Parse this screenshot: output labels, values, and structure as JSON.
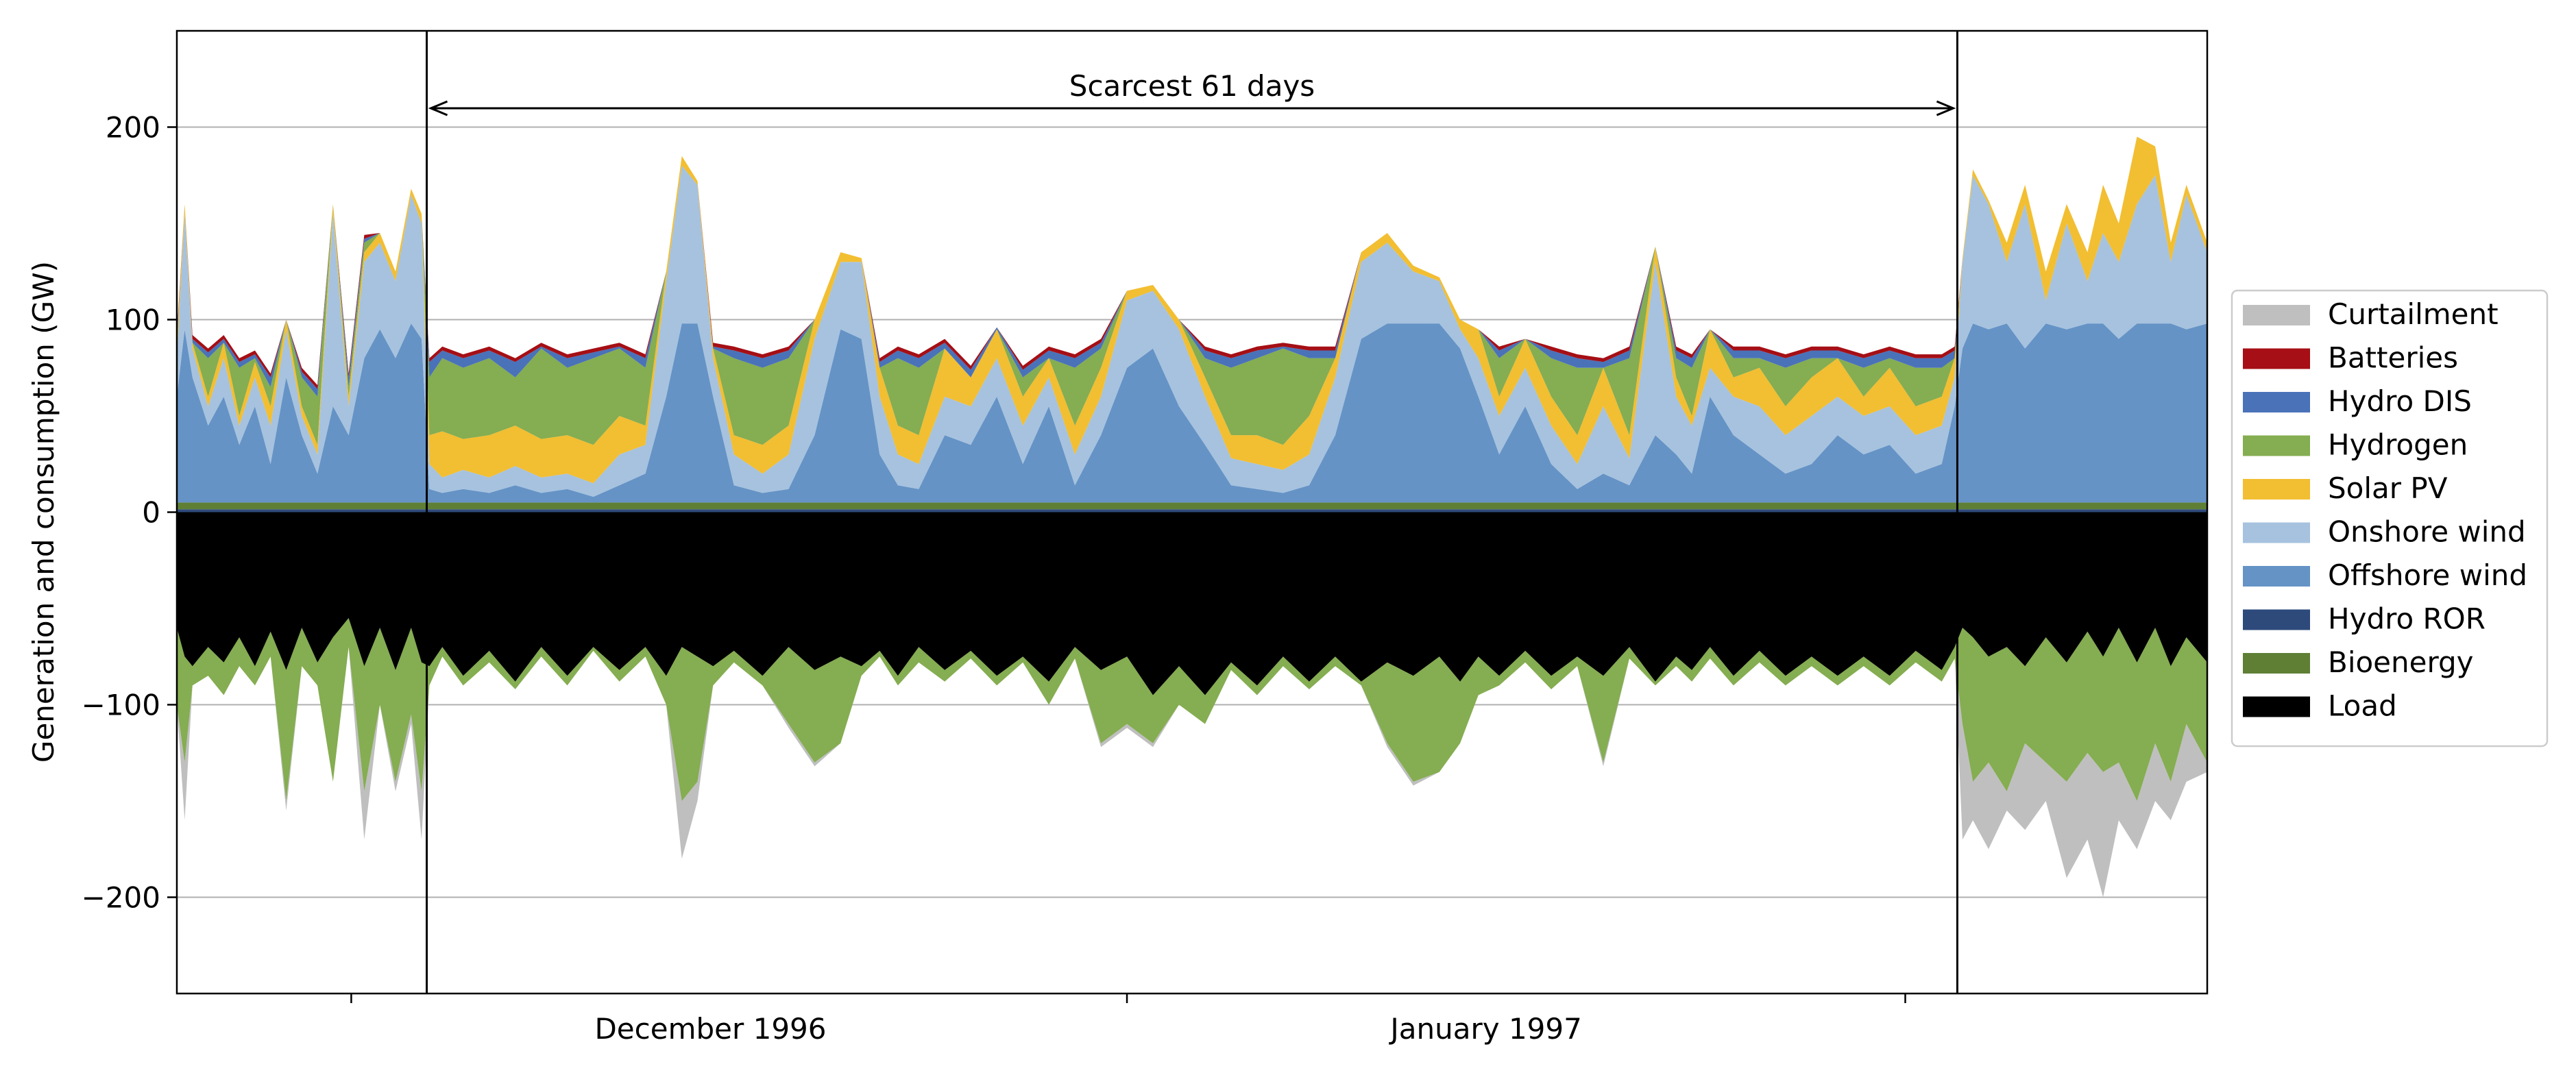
{
  "chart_data": {
    "type": "area",
    "title": "",
    "xlabel": "",
    "ylabel": "Generation and consumption (GW)",
    "ylim": [
      -250,
      250
    ],
    "yticks": [
      -200,
      -100,
      0,
      100,
      200
    ],
    "ytick_labels": [
      "−200",
      "−100",
      "0",
      "100",
      "200"
    ],
    "grid": "horizontal",
    "xlim_days": [
      0,
      78
    ],
    "x_date_labels": [
      {
        "day": 20.5,
        "label": "December 1996"
      },
      {
        "day": 50.3,
        "label": "January 1997"
      }
    ],
    "x_minor_ticks_days": [
      6.7,
      36.5,
      66.4
    ],
    "window": {
      "start_day": 9.6,
      "end_day": 68.4,
      "label": "Scarcest 61 days"
    },
    "legend_position": "outside-right",
    "series": [
      {
        "name": "Curtailment",
        "color": "#bfbfbf"
      },
      {
        "name": "Batteries",
        "color": "#a50f15"
      },
      {
        "name": "Hydro DIS",
        "color": "#4a72b8"
      },
      {
        "name": "Hydrogen",
        "color": "#85ad51"
      },
      {
        "name": "Solar PV",
        "color": "#f2be32"
      },
      {
        "name": "Onshore wind",
        "color": "#a6c2de"
      },
      {
        "name": "Offshore wind",
        "color": "#6593c6"
      },
      {
        "name": "Hydro ROR",
        "color": "#2e4a7b"
      },
      {
        "name": "Bioenergy",
        "color": "#5f7f35"
      },
      {
        "name": "Load",
        "color": "#000000"
      }
    ],
    "generation_profile": {
      "x_days": [
        0,
        0.3,
        0.6,
        1.2,
        1.8,
        2.4,
        3.0,
        3.6,
        4.2,
        4.8,
        5.4,
        6.0,
        6.6,
        7.2,
        7.8,
        8.4,
        9.0,
        9.4,
        9.7,
        10.2,
        11.0,
        12.0,
        13.0,
        14.0,
        15.0,
        16.0,
        17.0,
        18.0,
        18.8,
        19.4,
        20.0,
        20.6,
        21.4,
        22.5,
        23.5,
        24.5,
        25.5,
        26.3,
        27.0,
        27.7,
        28.5,
        29.5,
        30.5,
        31.5,
        32.5,
        33.5,
        34.5,
        35.5,
        36.5,
        37.5,
        38.5,
        39.5,
        40.5,
        41.5,
        42.5,
        43.5,
        44.5,
        45.5,
        46.5,
        47.5,
        48.5,
        49.3,
        50.0,
        50.8,
        51.8,
        52.8,
        53.8,
        54.8,
        55.8,
        56.8,
        57.6,
        58.2,
        58.9,
        59.8,
        60.8,
        61.8,
        62.8,
        63.8,
        64.8,
        65.8,
        66.8,
        67.8,
        68.3,
        68.6,
        69.0,
        69.6,
        70.3,
        71.0,
        71.8,
        72.6,
        73.4,
        74.0,
        74.6,
        75.3,
        76.0,
        76.6,
        77.2,
        78.0
      ],
      "bioenergy_ror": [
        5,
        5,
        5,
        5,
        5,
        5,
        5,
        5,
        5,
        5,
        5,
        5,
        5,
        5,
        5,
        5,
        5,
        5,
        5,
        5,
        5,
        5,
        5,
        5,
        5,
        5,
        5,
        5,
        5,
        5,
        5,
        5,
        5,
        5,
        5,
        5,
        5,
        5,
        5,
        5,
        5,
        5,
        5,
        5,
        5,
        5,
        5,
        5,
        5,
        5,
        5,
        5,
        5,
        5,
        5,
        5,
        5,
        5,
        5,
        5,
        5,
        5,
        5,
        5,
        5,
        5,
        5,
        5,
        5,
        5,
        5,
        5,
        5,
        5,
        5,
        5,
        5,
        5,
        5,
        5,
        5,
        5,
        5,
        5,
        5,
        5,
        5,
        5,
        5,
        5,
        5,
        5,
        5,
        5,
        5,
        5,
        5,
        5
      ],
      "offshore": [
        60,
        95,
        70,
        45,
        60,
        35,
        55,
        25,
        70,
        40,
        20,
        55,
        40,
        80,
        95,
        80,
        98,
        90,
        12,
        10,
        12,
        10,
        14,
        10,
        12,
        8,
        14,
        20,
        60,
        98,
        98,
        60,
        14,
        10,
        12,
        40,
        95,
        90,
        30,
        14,
        12,
        40,
        35,
        60,
        25,
        55,
        14,
        40,
        75,
        85,
        55,
        35,
        14,
        12,
        10,
        14,
        40,
        90,
        98,
        98,
        98,
        85,
        60,
        30,
        55,
        25,
        12,
        20,
        14,
        40,
        30,
        20,
        60,
        40,
        30,
        20,
        25,
        40,
        30,
        35,
        20,
        25,
        55,
        85,
        98,
        95,
        98,
        85,
        98,
        95,
        98,
        98,
        90,
        98,
        98,
        98,
        95,
        98
      ],
      "onshore": [
        80,
        155,
        85,
        55,
        80,
        45,
        70,
        45,
        95,
        50,
        30,
        155,
        55,
        130,
        140,
        120,
        165,
        150,
        25,
        18,
        22,
        18,
        24,
        18,
        20,
        15,
        30,
        35,
        120,
        180,
        170,
        80,
        30,
        20,
        30,
        90,
        130,
        130,
        60,
        30,
        25,
        60,
        55,
        80,
        45,
        70,
        30,
        60,
        110,
        115,
        95,
        60,
        28,
        25,
        22,
        30,
        70,
        130,
        140,
        125,
        120,
        95,
        80,
        50,
        75,
        45,
        25,
        55,
        28,
        130,
        60,
        45,
        75,
        60,
        55,
        40,
        50,
        60,
        50,
        55,
        40,
        45,
        70,
        130,
        175,
        160,
        130,
        160,
        110,
        150,
        120,
        145,
        130,
        160,
        175,
        130,
        165,
        135
      ],
      "solar": [
        88,
        160,
        88,
        60,
        88,
        50,
        78,
        55,
        100,
        55,
        35,
        160,
        60,
        135,
        145,
        125,
        168,
        155,
        40,
        42,
        38,
        40,
        45,
        38,
        40,
        35,
        50,
        45,
        125,
        185,
        172,
        85,
        40,
        35,
        45,
        100,
        135,
        132,
        75,
        45,
        40,
        85,
        70,
        95,
        60,
        80,
        45,
        75,
        115,
        118,
        100,
        70,
        40,
        40,
        35,
        50,
        80,
        135,
        145,
        128,
        122,
        100,
        95,
        60,
        90,
        60,
        40,
        75,
        40,
        138,
        70,
        50,
        95,
        70,
        75,
        55,
        70,
        80,
        60,
        75,
        55,
        60,
        80,
        132,
        178,
        162,
        140,
        170,
        125,
        160,
        135,
        170,
        150,
        195,
        190,
        140,
        170,
        140
      ],
      "hydrogen": [
        88,
        160,
        88,
        80,
        88,
        75,
        80,
        65,
        100,
        70,
        60,
        160,
        65,
        140,
        145,
        125,
        168,
        155,
        70,
        80,
        75,
        80,
        70,
        85,
        75,
        80,
        85,
        75,
        125,
        185,
        172,
        85,
        80,
        75,
        80,
        100,
        135,
        132,
        75,
        80,
        75,
        85,
        70,
        95,
        70,
        80,
        75,
        85,
        115,
        118,
        100,
        80,
        75,
        80,
        85,
        80,
        80,
        135,
        145,
        128,
        122,
        100,
        95,
        80,
        90,
        80,
        75,
        75,
        80,
        138,
        80,
        75,
        95,
        80,
        80,
        75,
        80,
        80,
        75,
        80,
        75,
        75,
        80,
        132,
        178,
        162,
        140,
        170,
        125,
        160,
        135,
        170,
        150,
        195,
        190,
        140,
        170,
        140
      ],
      "hydro_dis": [
        90,
        160,
        90,
        83,
        90,
        78,
        82,
        70,
        100,
        73,
        64,
        160,
        70,
        142,
        145,
        125,
        168,
        155,
        78,
        84,
        80,
        84,
        78,
        86,
        80,
        83,
        86,
        80,
        125,
        185,
        172,
        86,
        84,
        80,
        84,
        100,
        135,
        132,
        78,
        84,
        80,
        88,
        74,
        96,
        74,
        84,
        80,
        88,
        115,
        118,
        100,
        84,
        80,
        84,
        86,
        84,
        84,
        135,
        145,
        128,
        122,
        100,
        95,
        84,
        90,
        84,
        80,
        78,
        84,
        138,
        84,
        80,
        95,
        84,
        84,
        80,
        84,
        84,
        80,
        84,
        80,
        80,
        84,
        132,
        178,
        162,
        140,
        170,
        125,
        160,
        135,
        170,
        150,
        195,
        190,
        140,
        170,
        140
      ],
      "batteries": [
        92,
        160,
        92,
        85,
        92,
        80,
        84,
        72,
        100,
        75,
        66,
        160,
        72,
        144,
        145,
        125,
        168,
        155,
        80,
        86,
        82,
        86,
        80,
        88,
        82,
        85,
        88,
        82,
        125,
        185,
        172,
        88,
        86,
        82,
        86,
        100,
        135,
        132,
        80,
        86,
        82,
        90,
        76,
        96,
        76,
        86,
        82,
        90,
        115,
        118,
        100,
        86,
        82,
        86,
        88,
        86,
        86,
        135,
        145,
        128,
        122,
        100,
        95,
        86,
        90,
        86,
        82,
        80,
        86,
        138,
        86,
        82,
        95,
        86,
        86,
        82,
        86,
        86,
        82,
        86,
        82,
        82,
        86,
        132,
        178,
        162,
        140,
        170,
        125,
        160,
        135,
        170,
        150,
        195,
        190,
        140,
        170,
        140
      ]
    },
    "consumption_profile": {
      "x_days": [
        0,
        0.3,
        0.6,
        1.2,
        1.8,
        2.4,
        3.0,
        3.6,
        4.2,
        4.8,
        5.4,
        6.0,
        6.6,
        7.2,
        7.8,
        8.4,
        9.0,
        9.4,
        9.7,
        10.2,
        11.0,
        12.0,
        13.0,
        14.0,
        15.0,
        16.0,
        17.0,
        18.0,
        18.8,
        19.4,
        20.0,
        20.6,
        21.4,
        22.5,
        23.5,
        24.5,
        25.5,
        26.3,
        27.0,
        27.7,
        28.5,
        29.5,
        30.5,
        31.5,
        32.5,
        33.5,
        34.5,
        35.5,
        36.5,
        37.5,
        38.5,
        39.5,
        40.5,
        41.5,
        42.5,
        43.5,
        44.5,
        45.5,
        46.5,
        47.5,
        48.5,
        49.3,
        50.0,
        50.8,
        51.8,
        52.8,
        53.8,
        54.8,
        55.8,
        56.8,
        57.6,
        58.2,
        58.9,
        59.8,
        60.8,
        61.8,
        62.8,
        63.8,
        64.8,
        65.8,
        66.8,
        67.8,
        68.3,
        68.6,
        69.0,
        69.6,
        70.3,
        71.0,
        71.8,
        72.6,
        73.4,
        74.0,
        74.6,
        75.3,
        76.0,
        76.6,
        77.2,
        78.0
      ],
      "load": [
        -60,
        -75,
        -80,
        -70,
        -78,
        -65,
        -80,
        -62,
        -82,
        -60,
        -78,
        -65,
        -55,
        -80,
        -60,
        -82,
        -60,
        -78,
        -80,
        -70,
        -85,
        -72,
        -88,
        -70,
        -85,
        -70,
        -82,
        -70,
        -85,
        -70,
        -75,
        -80,
        -72,
        -85,
        -70,
        -82,
        -75,
        -80,
        -72,
        -85,
        -70,
        -82,
        -72,
        -85,
        -75,
        -88,
        -70,
        -82,
        -75,
        -95,
        -80,
        -95,
        -78,
        -90,
        -75,
        -88,
        -75,
        -88,
        -78,
        -85,
        -75,
        -88,
        -75,
        -85,
        -72,
        -85,
        -75,
        -85,
        -70,
        -88,
        -75,
        -82,
        -70,
        -85,
        -72,
        -85,
        -75,
        -85,
        -75,
        -85,
        -72,
        -82,
        -70,
        -60,
        -65,
        -75,
        -70,
        -80,
        -65,
        -78,
        -62,
        -75,
        -60,
        -78,
        -60,
        -80,
        -65,
        -78
      ],
      "hydrogen": [
        -100,
        -130,
        -90,
        -85,
        -95,
        -80,
        -90,
        -75,
        -150,
        -80,
        -90,
        -140,
        -70,
        -145,
        -100,
        -140,
        -105,
        -145,
        -90,
        -75,
        -90,
        -78,
        -92,
        -75,
        -90,
        -72,
        -88,
        -75,
        -100,
        -150,
        -140,
        -90,
        -78,
        -90,
        -110,
        -130,
        -120,
        -85,
        -75,
        -90,
        -78,
        -88,
        -76,
        -90,
        -78,
        -100,
        -76,
        -120,
        -110,
        -120,
        -100,
        -110,
        -82,
        -95,
        -80,
        -92,
        -80,
        -90,
        -120,
        -140,
        -135,
        -120,
        -95,
        -90,
        -78,
        -92,
        -80,
        -130,
        -76,
        -90,
        -80,
        -88,
        -76,
        -90,
        -78,
        -90,
        -80,
        -90,
        -80,
        -90,
        -78,
        -88,
        -76,
        -110,
        -140,
        -130,
        -145,
        -120,
        -130,
        -140,
        -125,
        -135,
        -130,
        -150,
        -120,
        -140,
        -110,
        -130
      ],
      "curtailment": [
        -100,
        -160,
        -90,
        -85,
        -95,
        -80,
        -90,
        -75,
        -155,
        -80,
        -90,
        -140,
        -70,
        -170,
        -100,
        -145,
        -110,
        -170,
        -90,
        -75,
        -90,
        -78,
        -92,
        -75,
        -90,
        -72,
        -88,
        -75,
        -100,
        -180,
        -150,
        -90,
        -78,
        -90,
        -112,
        -132,
        -120,
        -85,
        -75,
        -90,
        -78,
        -88,
        -76,
        -90,
        -78,
        -100,
        -76,
        -122,
        -112,
        -122,
        -100,
        -110,
        -82,
        -95,
        -80,
        -92,
        -80,
        -90,
        -122,
        -142,
        -135,
        -120,
        -95,
        -90,
        -78,
        -92,
        -80,
        -132,
        -76,
        -90,
        -80,
        -88,
        -76,
        -90,
        -78,
        -90,
        -80,
        -90,
        -80,
        -90,
        -78,
        -88,
        -76,
        -170,
        -160,
        -175,
        -155,
        -165,
        -150,
        -190,
        -170,
        -200,
        -160,
        -175,
        -150,
        -160,
        -140,
        -135
      ]
    }
  },
  "legend": {
    "items": [
      {
        "label": "Curtailment",
        "color": "#bfbfbf"
      },
      {
        "label": "Batteries",
        "color": "#a50f15"
      },
      {
        "label": "Hydro DIS",
        "color": "#4a72b8"
      },
      {
        "label": "Hydrogen",
        "color": "#85ad51"
      },
      {
        "label": "Solar PV",
        "color": "#f2be32"
      },
      {
        "label": "Onshore wind",
        "color": "#a6c2de"
      },
      {
        "label": "Offshore wind",
        "color": "#6593c6"
      },
      {
        "label": "Hydro ROR",
        "color": "#2e4a7b"
      },
      {
        "label": "Bioenergy",
        "color": "#5f7f35"
      },
      {
        "label": "Load",
        "color": "#000000"
      }
    ]
  }
}
